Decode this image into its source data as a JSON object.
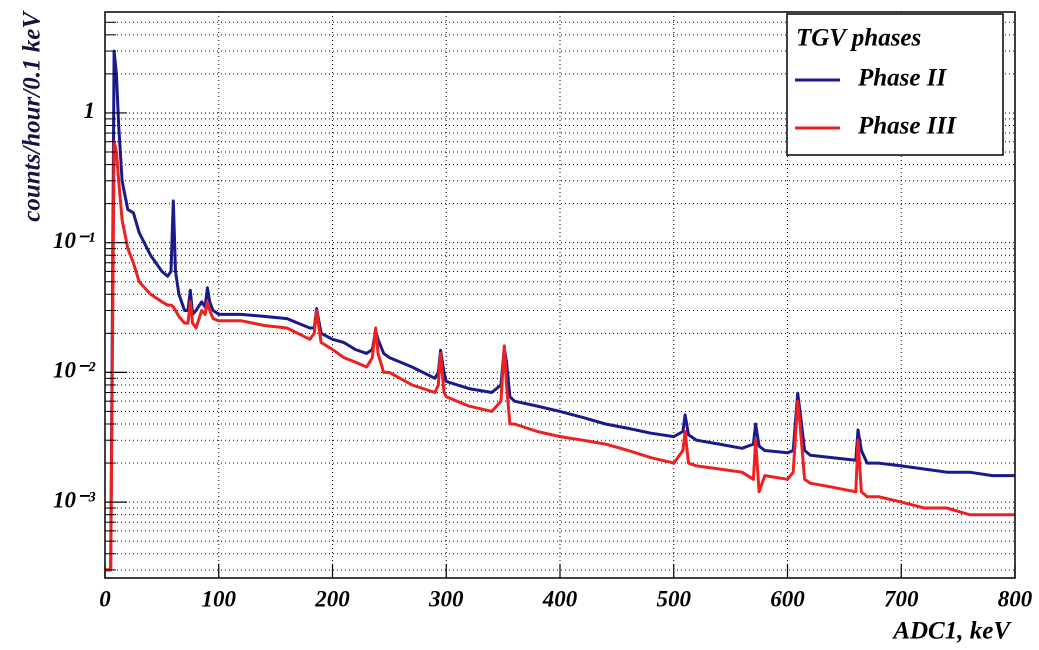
{
  "chart_data": {
    "type": "line",
    "xlabel": "ADC1, keV",
    "ylabel": "counts/hour/0.1 keV",
    "legend_title": "TGV phases",
    "legend": "top-right",
    "log_y": true,
    "grid": true,
    "xlim": [
      0,
      800
    ],
    "xticks": [
      0,
      100,
      200,
      300,
      400,
      500,
      600,
      700,
      800
    ],
    "ylim": [
      0.00026,
      6
    ],
    "yticks": [
      {
        "value": 0.001,
        "label": "10⁻³"
      },
      {
        "value": 0.01,
        "label": "10⁻²"
      },
      {
        "value": 0.1,
        "label": "10⁻¹"
      },
      1
    ],
    "x": [
      0,
      5,
      8,
      10,
      12,
      15,
      20,
      25,
      30,
      40,
      50,
      55,
      58,
      60,
      62,
      65,
      70,
      73,
      75,
      77,
      80,
      85,
      88,
      90,
      92,
      95,
      100,
      120,
      140,
      160,
      180,
      184,
      186,
      190,
      200,
      210,
      220,
      230,
      235,
      238,
      240,
      245,
      250,
      270,
      290,
      293,
      295,
      298,
      300,
      320,
      340,
      348,
      351,
      353,
      356,
      360,
      380,
      400,
      420,
      440,
      460,
      480,
      500,
      508,
      510,
      513,
      520,
      540,
      560,
      570,
      572,
      575,
      580,
      600,
      605,
      609,
      611,
      615,
      620,
      640,
      660,
      662,
      665,
      670,
      680,
      700,
      720,
      740,
      760,
      780,
      800
    ],
    "series": [
      {
        "name": "Phase II",
        "color": "#1a1a8c",
        "values": [
          0.0003,
          0.0003,
          3,
          2,
          0.8,
          0.3,
          0.18,
          0.17,
          0.12,
          0.08,
          0.06,
          0.055,
          0.06,
          0.21,
          0.06,
          0.04,
          0.03,
          0.03,
          0.043,
          0.028,
          0.03,
          0.035,
          0.032,
          0.045,
          0.035,
          0.03,
          0.028,
          0.028,
          0.027,
          0.026,
          0.022,
          0.022,
          0.031,
          0.02,
          0.018,
          0.017,
          0.015,
          0.014,
          0.015,
          0.021,
          0.018,
          0.014,
          0.013,
          0.011,
          0.009,
          0.01,
          0.0148,
          0.01,
          0.0085,
          0.0075,
          0.007,
          0.008,
          0.0153,
          0.012,
          0.0065,
          0.006,
          0.0055,
          0.005,
          0.0045,
          0.004,
          0.0037,
          0.0034,
          0.0032,
          0.0035,
          0.0047,
          0.0033,
          0.003,
          0.0028,
          0.0026,
          0.0028,
          0.004,
          0.0027,
          0.0025,
          0.0024,
          0.0025,
          0.0069,
          0.005,
          0.0025,
          0.0023,
          0.0022,
          0.0021,
          0.0036,
          0.0025,
          0.002,
          0.002,
          0.0019,
          0.0018,
          0.0017,
          0.0017,
          0.0016,
          0.0016
        ]
      },
      {
        "name": "Phase III",
        "color": "#ee2020",
        "values": [
          0.0003,
          0.0003,
          0.6,
          0.5,
          0.3,
          0.15,
          0.09,
          0.07,
          0.05,
          0.04,
          0.035,
          0.033,
          0.033,
          0.032,
          0.03,
          0.027,
          0.024,
          0.024,
          0.035,
          0.024,
          0.022,
          0.03,
          0.028,
          0.035,
          0.03,
          0.026,
          0.025,
          0.025,
          0.023,
          0.022,
          0.018,
          0.02,
          0.03,
          0.017,
          0.015,
          0.013,
          0.012,
          0.011,
          0.013,
          0.022,
          0.014,
          0.01,
          0.01,
          0.008,
          0.007,
          0.008,
          0.014,
          0.007,
          0.0065,
          0.0055,
          0.005,
          0.006,
          0.016,
          0.008,
          0.004,
          0.004,
          0.0035,
          0.0032,
          0.003,
          0.0028,
          0.0025,
          0.0022,
          0.002,
          0.0025,
          0.0035,
          0.002,
          0.0019,
          0.0018,
          0.0017,
          0.0015,
          0.003,
          0.0012,
          0.0016,
          0.0015,
          0.0017,
          0.006,
          0.004,
          0.0015,
          0.0014,
          0.0013,
          0.0012,
          0.003,
          0.0012,
          0.0011,
          0.0011,
          0.001,
          0.0009,
          0.0009,
          0.0008,
          0.0008,
          0.0008
        ]
      }
    ]
  }
}
